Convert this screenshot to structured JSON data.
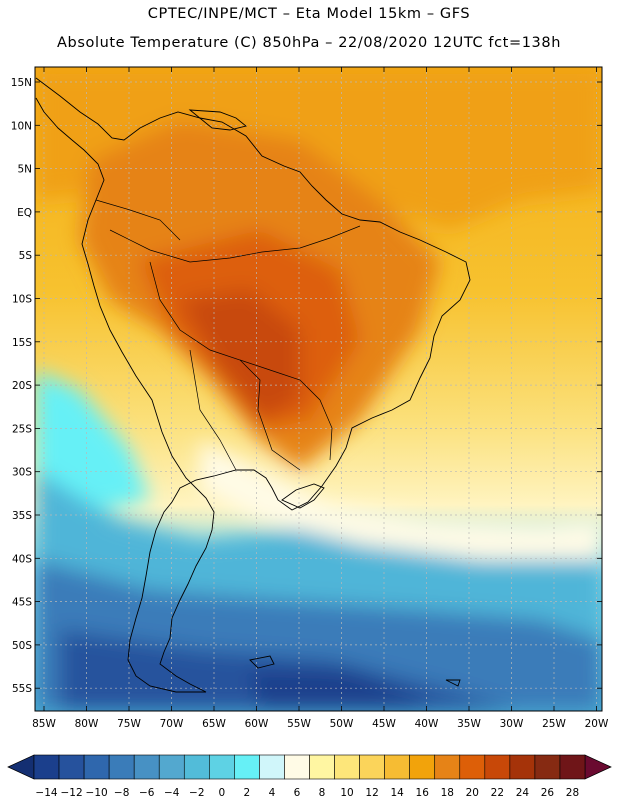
{
  "header": {
    "line1": "CPTEC/INPE/MCT –  Eta Model 15km – GFS",
    "line2": "Absolute Temperature (C) 850hPa – 22/08/2020 12UTC fct=138h"
  },
  "map": {
    "lat_labels": [
      "15N",
      "10N",
      "5N",
      "EQ",
      "5S",
      "10S",
      "15S",
      "20S",
      "25S",
      "30S",
      "35S",
      "40S",
      "45S",
      "50S",
      "55S"
    ],
    "lon_labels": [
      "85W",
      "80W",
      "75W",
      "70W",
      "65W",
      "60W",
      "55W",
      "50W",
      "45W",
      "40W",
      "35W",
      "30W",
      "25W",
      "20W"
    ]
  },
  "colorbar": {
    "labels": [
      "-14",
      "-12",
      "-10",
      "-8",
      "-6",
      "-4",
      "-2",
      "0",
      "2",
      "4",
      "6",
      "8",
      "10",
      "12",
      "14",
      "16",
      "18",
      "20",
      "22",
      "24",
      "26",
      "28"
    ],
    "colors": [
      "#1b3f8c",
      "#26529d",
      "#2f67ad",
      "#3a7cb9",
      "#4791c4",
      "#53a8cf",
      "#52bcd9",
      "#5ed2e4",
      "#66f0f6",
      "#d0f6fa",
      "#fffbe6",
      "#fff6a2",
      "#fde67a",
      "#fbd45a",
      "#f6bc33",
      "#f2a30b",
      "#e68317",
      "#dd5f08",
      "#c84808",
      "#a53309",
      "#862a12",
      "#6f1518"
    ]
  }
}
